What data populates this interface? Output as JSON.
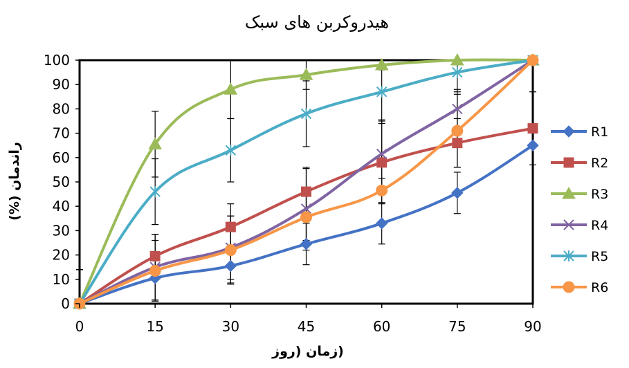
{
  "chart_data": {
    "type": "line",
    "title": "هیدروکربن های سبک",
    "xlabel": "(زمان (روز",
    "ylabel": "راندمان (%)",
    "x": [
      0,
      15,
      30,
      45,
      60,
      75,
      90
    ],
    "xticks": [
      "0",
      "15",
      "30",
      "45",
      "60",
      "75",
      "90"
    ],
    "yticks": [
      "0",
      "10",
      "20",
      "30",
      "40",
      "50",
      "60",
      "70",
      "80",
      "90",
      "100"
    ],
    "xlim": [
      0,
      90
    ],
    "ylim": [
      0,
      100
    ],
    "grid": false,
    "legend_position": "right",
    "error_bars": true,
    "series": [
      {
        "name": "R1",
        "color": "#4472C4",
        "marker": "diamond",
        "values": [
          0,
          10.5,
          15.5,
          24.5,
          33,
          45.5,
          65
        ],
        "error": [
          14,
          9,
          7,
          8.5,
          8.5,
          8.5,
          0
        ]
      },
      {
        "name": "R2",
        "color": "#C0504D",
        "marker": "square",
        "values": [
          0,
          19.5,
          31.5,
          46,
          58,
          66,
          72
        ],
        "error": [
          14,
          9,
          9.5,
          9.5,
          17,
          10,
          15
        ]
      },
      {
        "name": "R3",
        "color": "#9BBB59",
        "marker": "triangle",
        "values": [
          0,
          65.5,
          88,
          94,
          98,
          100,
          100
        ],
        "error": [
          14,
          13.5,
          12,
          6,
          2,
          0,
          0
        ]
      },
      {
        "name": "R4",
        "color": "#8064A2",
        "marker": "x",
        "values": [
          0,
          15,
          23,
          39,
          61.5,
          80,
          100
        ],
        "error": [
          14,
          13.5,
          13,
          17,
          14,
          8,
          0
        ]
      },
      {
        "name": "R5",
        "color": "#4BACC6",
        "marker": "star",
        "values": [
          0,
          46,
          63,
          78,
          87,
          95,
          100
        ],
        "error": [
          14,
          13.5,
          13,
          13.5,
          13,
          8,
          0
        ]
      },
      {
        "name": "R6",
        "color": "#F79646",
        "marker": "circle",
        "values": [
          0,
          13.5,
          22,
          35.5,
          46.5,
          71,
          100
        ],
        "error": [
          14,
          12.5,
          14,
          9.5,
          5,
          15,
          0
        ]
      }
    ]
  }
}
